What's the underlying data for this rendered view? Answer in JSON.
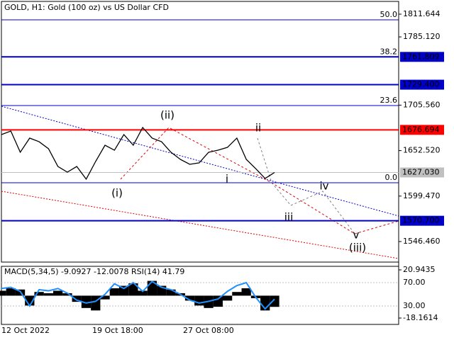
{
  "title": "GOLD, H1:  Gold (100 oz) vs US Dollar CFD",
  "chart_data": {
    "type": "line",
    "values": [
      1671.2,
      1675.3,
      1650.6,
      1667.1,
      1662.9,
      1654.7,
      1634.0,
      1627.4,
      1634.0,
      1619.2,
      1639.8,
      1658.8,
      1653.0,
      1671.2,
      1658.8,
      1679.5,
      1667.1,
      1662.9,
      1650.6,
      1642.3,
      1636.5,
      1638.2,
      1650.6,
      1653.0,
      1656.3,
      1667.1,
      1642.3,
      1631.5,
      1620.0,
      1627.0
    ],
    "color": "#000000",
    "ylim": [
      1522.5,
      1826.5
    ],
    "yticks": [
      1811.644,
      {
        "value": 1785.12,
        "label": "1785.120"
      },
      {
        "value": 1705.56,
        "label": "1705.560"
      },
      {
        "value": 1652.52,
        "label": "1652.520"
      },
      {
        "value": 1599.47,
        "label": "1599.470"
      },
      {
        "value": 1546.46,
        "label": "1546.460"
      }
    ],
    "levels": [
      {
        "value": 1761.809,
        "label": "1761.809",
        "color": "#0000c8"
      },
      {
        "value": 1729.4,
        "label": "1729.400",
        "color": "#0000c8"
      },
      {
        "value": 1676.694,
        "label": "1676.694",
        "color": "#ff0000"
      },
      {
        "value": 1627.03,
        "label": "1627.030",
        "color": "#c0c0c0"
      },
      {
        "value": 1570.7,
        "label": "1570.700",
        "color": "#0000c8"
      }
    ],
    "fib_levels": [
      {
        "value": 1805.0,
        "label": "50.0"
      },
      {
        "value": 1761.8,
        "label": "38.2"
      },
      {
        "value": 1705.1,
        "label": "23.6"
      },
      {
        "value": 1615.0,
        "label": "0.0"
      }
    ],
    "annotations": [
      "(i)",
      "(ii)",
      "ii",
      "i",
      "iii",
      "iv",
      "v",
      "(iii)"
    ],
    "x_labels": [
      "12 Oct 2022",
      "19 Oct 18:00",
      "27 Oct 08:00"
    ]
  },
  "indicator": {
    "title": "MACD(5,34,5) -9.0927 -12.0078 RSI(14) 41.79",
    "macd": [
      4,
      6,
      5,
      -8,
      3,
      2,
      4,
      2,
      -5,
      -10,
      -12,
      -3,
      6,
      8,
      10,
      4,
      12,
      8,
      5,
      2,
      -4,
      -8,
      -10,
      -9,
      -4,
      3,
      6,
      -2,
      -12,
      -9.0927
    ],
    "rsi": [
      60,
      62,
      55,
      30,
      58,
      56,
      60,
      52,
      40,
      35,
      38,
      50,
      68,
      60,
      70,
      55,
      72,
      62,
      58,
      50,
      40,
      35,
      38,
      42,
      55,
      65,
      70,
      45,
      25,
      41.79
    ],
    "macd_lim": [
      -18.1614,
      20.9435
    ],
    "macd_ticks": [
      20.9435,
      -18.1614
    ],
    "rsi_ticks": [
      {
        "value": 70,
        "label": "70.00"
      },
      {
        "value": 30,
        "label": "30.00"
      }
    ],
    "rsi_color": "#1e90ff"
  }
}
